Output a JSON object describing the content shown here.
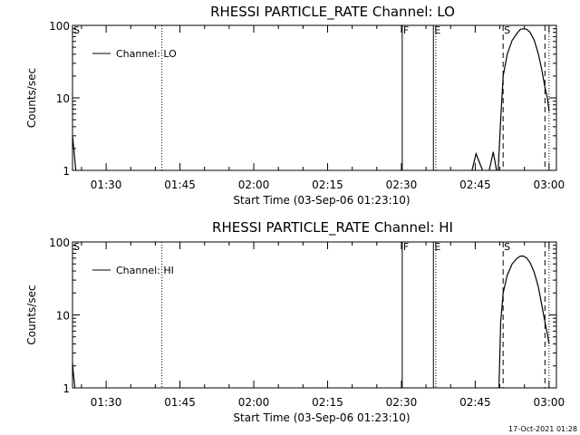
{
  "colors": {
    "background": "#ffffff",
    "foreground": "#000000"
  },
  "chart_data": [
    {
      "type": "line",
      "title": "RHESSI PARTICLE_RATE Channel: LO",
      "xlabel": "Start Time (03-Sep-06 01:23:10)",
      "ylabel": "Counts/sec",
      "y_scale": "log",
      "ylim": [
        1,
        100
      ],
      "y_ticks": [
        "1",
        "10",
        "100"
      ],
      "xlim": [
        "01:23:10",
        "03:01:30"
      ],
      "x_ticks": [
        "01:30",
        "01:45",
        "02:00",
        "02:15",
        "02:30",
        "02:45",
        "03:00"
      ],
      "legend": {
        "position": "top-left",
        "entries": [
          "Channel: LO"
        ]
      },
      "flags": [
        {
          "label": "S",
          "time": "01:23:10",
          "style": "none"
        },
        {
          "label": "",
          "time": "01:41:20",
          "style": "dotted"
        },
        {
          "label": "F",
          "time": "02:30:10",
          "style": "solid"
        },
        {
          "label": "E",
          "time": "02:36:30",
          "style": "solid"
        },
        {
          "label": "",
          "time": "02:37:00",
          "style": "dotted"
        },
        {
          "label": "S",
          "time": "02:50:40",
          "style": "dashed"
        },
        {
          "label": "",
          "time": "02:59:10",
          "style": "dashed"
        },
        {
          "label": "",
          "time": "03:00:00",
          "style": "dotted"
        }
      ],
      "series": [
        {
          "name": "Channel: LO",
          "segments": [
            {
              "x": [
                "01:23:10",
                "01:23:30",
                "01:23:50"
              ],
              "y": [
                3,
                1.8,
                1
              ]
            },
            {
              "x": [
                "02:44:20",
                "02:45:10",
                "02:46:30"
              ],
              "y": [
                1,
                1.7,
                1
              ]
            },
            {
              "x": [
                "02:47:50",
                "02:48:40",
                "02:49:20"
              ],
              "y": [
                1,
                1.8,
                1
              ]
            },
            {
              "x": [
                "02:49:40",
                "02:50:10",
                "02:50:40",
                "02:51:30",
                "02:52:30",
                "02:53:30",
                "02:54:10",
                "02:54:50",
                "02:55:30",
                "02:56:10",
                "02:57:00",
                "02:57:50",
                "02:58:30",
                "02:59:10",
                "02:59:40",
                "03:00:00"
              ],
              "y": [
                1,
                5,
                20,
                40,
                62,
                78,
                88,
                90,
                88,
                80,
                62,
                40,
                25,
                14,
                10,
                6.5
              ]
            }
          ]
        }
      ]
    },
    {
      "type": "line",
      "title": "RHESSI PARTICLE_RATE Channel: HI",
      "xlabel": "Start Time (03-Sep-06 01:23:10)",
      "ylabel": "Counts/sec",
      "y_scale": "log",
      "ylim": [
        1,
        100
      ],
      "y_ticks": [
        "1",
        "10",
        "100"
      ],
      "xlim": [
        "01:23:10",
        "03:01:30"
      ],
      "x_ticks": [
        "01:30",
        "01:45",
        "02:00",
        "02:15",
        "02:30",
        "02:45",
        "03:00"
      ],
      "legend": {
        "position": "top-left",
        "entries": [
          "Channel: HI"
        ]
      },
      "flags": [
        {
          "label": "S",
          "time": "01:23:10",
          "style": "none"
        },
        {
          "label": "",
          "time": "01:41:20",
          "style": "dotted"
        },
        {
          "label": "F",
          "time": "02:30:10",
          "style": "solid"
        },
        {
          "label": "E",
          "time": "02:36:30",
          "style": "solid"
        },
        {
          "label": "",
          "time": "02:37:00",
          "style": "dotted"
        },
        {
          "label": "S",
          "time": "02:50:40",
          "style": "dashed"
        },
        {
          "label": "",
          "time": "02:59:10",
          "style": "dashed"
        },
        {
          "label": "",
          "time": "03:00:00",
          "style": "dotted"
        }
      ],
      "series": [
        {
          "name": "Channel: HI",
          "segments": [
            {
              "x": [
                "01:23:10",
                "01:23:20",
                "01:23:40"
              ],
              "y": [
                2.2,
                1.6,
                1
              ]
            },
            {
              "x": [
                "02:49:50",
                "02:50:10",
                "02:50:40",
                "02:51:30",
                "02:52:30",
                "02:53:30",
                "02:54:10",
                "02:54:50",
                "02:55:30",
                "02:56:10",
                "02:57:00",
                "02:57:50",
                "02:58:30",
                "02:59:10",
                "02:59:40",
                "03:00:00"
              ],
              "y": [
                1,
                8,
                20,
                35,
                50,
                60,
                64,
                64,
                60,
                52,
                38,
                24,
                14,
                8,
                5.5,
                4
              ]
            }
          ]
        }
      ]
    }
  ],
  "footer": {
    "timestamp": "17-Oct-2021 01:28"
  }
}
